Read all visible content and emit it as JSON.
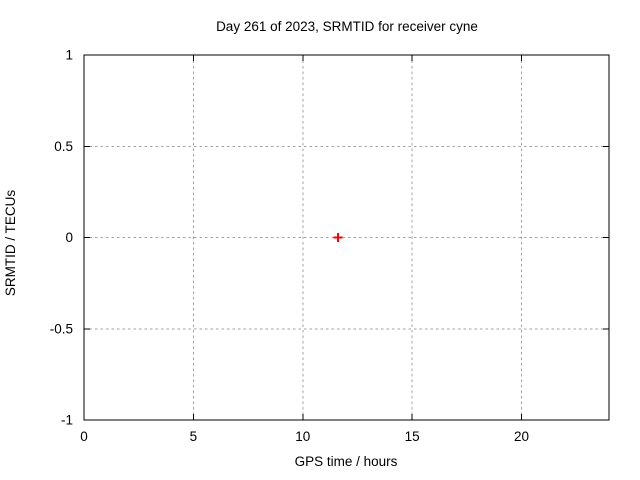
{
  "chart_data": {
    "type": "scatter",
    "title": "Day 261 of 2023, SRMTID for receiver cyne",
    "xlabel": "GPS time / hours",
    "ylabel": "SRMTID / TECUs",
    "xlim": [
      0,
      24
    ],
    "ylim": [
      -1,
      1
    ],
    "xticks": [
      0,
      5,
      10,
      15,
      20
    ],
    "yticks": [
      -1,
      -0.5,
      0,
      0.5,
      1
    ],
    "grid": true,
    "grid_style": "dashed",
    "legend": "none",
    "series": [
      {
        "name": "SRMTID",
        "marker": "plus",
        "color": "#ff0000",
        "points": [
          {
            "x": 11.6,
            "y": 0
          }
        ]
      }
    ],
    "colors": {
      "background": "#ffffff",
      "axis": "#000000",
      "grid": "#a0a0a0",
      "text": "#000000",
      "marker": "#ff0000"
    }
  }
}
